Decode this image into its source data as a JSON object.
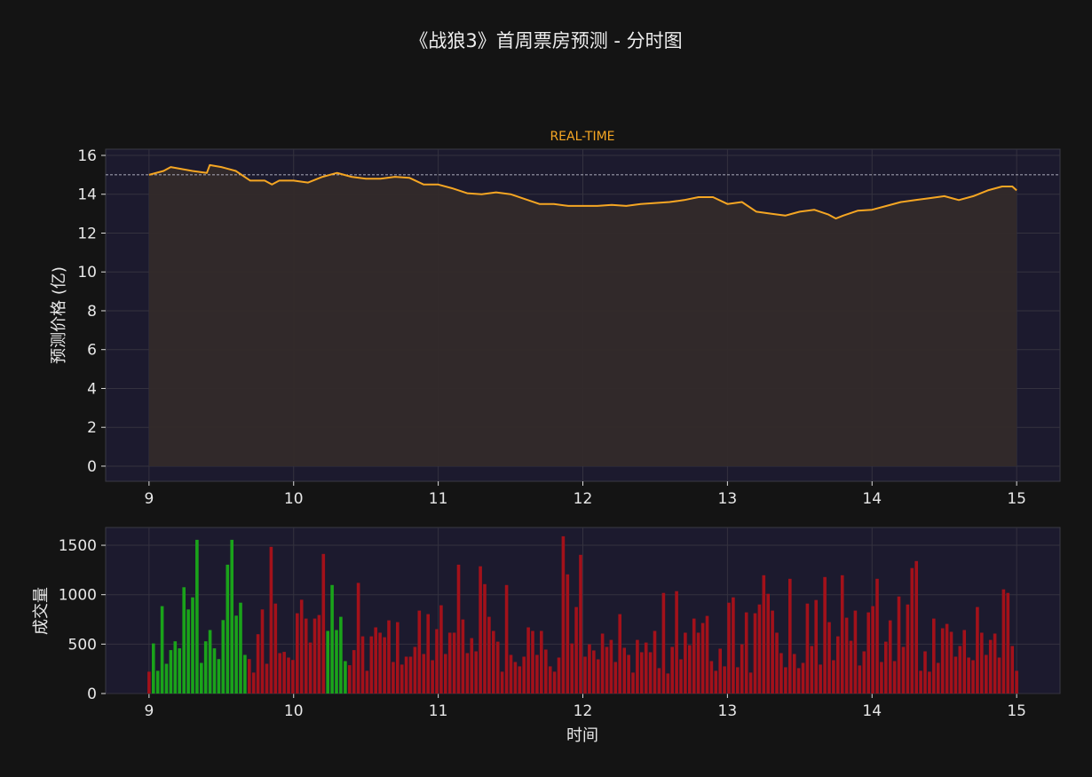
{
  "title": "《战狼3》首周票房预测 - 分时图",
  "colors": {
    "background": "#141414",
    "plot_bg": "#1c1a2e",
    "line": "#f5a623",
    "fill": "#332a2a",
    "up": "#1aa31a",
    "down": "#a3111a",
    "reference": "#d8d8e8"
  },
  "chart_data": [
    {
      "type": "line",
      "subtitle": "REAL-TIME",
      "ylabel": "预测价格 (亿)",
      "xlim": [
        8.7,
        15.3
      ],
      "ylim": [
        -0.78,
        16.32
      ],
      "xticks": [
        9,
        10,
        11,
        12,
        13,
        14,
        15
      ],
      "yticks": [
        0,
        2,
        4,
        6,
        8,
        10,
        12,
        14,
        16
      ],
      "grid": true,
      "area_fill": true,
      "reference_line": 15.0,
      "x": [
        9.0,
        9.1,
        9.15,
        9.3,
        9.4,
        9.42,
        9.5,
        9.6,
        9.7,
        9.8,
        9.85,
        9.9,
        10.0,
        10.1,
        10.2,
        10.3,
        10.4,
        10.5,
        10.6,
        10.7,
        10.8,
        10.9,
        11.0,
        11.1,
        11.2,
        11.3,
        11.4,
        11.5,
        11.6,
        11.7,
        11.8,
        11.9,
        12.0,
        12.1,
        12.2,
        12.3,
        12.4,
        12.5,
        12.6,
        12.7,
        12.8,
        12.9,
        13.0,
        13.1,
        13.2,
        13.3,
        13.4,
        13.5,
        13.6,
        13.7,
        13.75,
        13.8,
        13.9,
        14.0,
        14.1,
        14.2,
        14.3,
        14.4,
        14.5,
        14.6,
        14.7,
        14.8,
        14.9,
        14.97,
        15.0
      ],
      "y": [
        15.0,
        15.2,
        15.4,
        15.2,
        15.1,
        15.5,
        15.4,
        15.2,
        14.7,
        14.7,
        14.5,
        14.7,
        14.7,
        14.6,
        14.9,
        15.1,
        14.9,
        14.8,
        14.8,
        14.9,
        14.85,
        14.5,
        14.5,
        14.3,
        14.05,
        14.0,
        14.1,
        14.0,
        13.75,
        13.5,
        13.5,
        13.4,
        13.4,
        13.4,
        13.45,
        13.4,
        13.5,
        13.55,
        13.6,
        13.7,
        13.85,
        13.85,
        13.5,
        13.6,
        13.1,
        13.0,
        12.9,
        13.1,
        13.2,
        12.95,
        12.75,
        12.9,
        13.15,
        13.2,
        13.4,
        13.6,
        13.7,
        13.8,
        13.9,
        13.7,
        13.9,
        14.2,
        14.4,
        14.4,
        14.2
      ]
    },
    {
      "type": "bar",
      "xlabel": "时间",
      "ylabel": "成交量",
      "xlim": [
        8.7,
        15.3
      ],
      "ylim": [
        0,
        1680
      ],
      "xticks": [
        9,
        10,
        11,
        12,
        13,
        14,
        15
      ],
      "yticks": [
        0,
        500,
        1000,
        1500
      ],
      "grid": true,
      "x_start": 9,
      "x_end": 15,
      "values": [
        221,
        507,
        230,
        884,
        301,
        439,
        528,
        457,
        1075,
        851,
        973,
        1555,
        310,
        528,
        642,
        457,
        349,
        743,
        1304,
        1555,
        788,
        919,
        391,
        349,
        212,
        600,
        851,
        301,
        1484,
        910,
        409,
        421,
        364,
        340,
        812,
        949,
        758,
        516,
        758,
        794,
        1412,
        633,
        1098,
        642,
        776,
        328,
        287,
        439,
        1119,
        579,
        230,
        579,
        669,
        615,
        570,
        740,
        319,
        722,
        293,
        373,
        373,
        472,
        839,
        400,
        803,
        337,
        651,
        893,
        400,
        615,
        615,
        1304,
        749,
        409,
        561,
        427,
        1287,
        1107,
        776,
        633,
        525,
        221,
        1098,
        391,
        319,
        275,
        373,
        669,
        633,
        391,
        633,
        445,
        275,
        221,
        364,
        1591,
        1206,
        507,
        875,
        1403,
        373,
        498,
        436,
        346,
        606,
        472,
        543,
        319,
        803,
        463,
        391,
        212,
        543,
        418,
        516,
        418,
        633,
        257,
        1018,
        203,
        472,
        1036,
        346,
        615,
        490,
        758,
        615,
        713,
        785,
        328,
        230,
        454,
        275,
        919,
        973,
        266,
        498,
        821,
        212,
        812,
        901,
        1197,
        1009,
        839,
        615,
        409,
        266,
        1161,
        400,
        257,
        310,
        910,
        481,
        946,
        293,
        1179,
        722,
        337,
        579,
        1197,
        767,
        534,
        839,
        284,
        427,
        821,
        884,
        1161,
        319,
        525,
        740,
        328,
        982,
        472,
        901,
        1269,
        1340,
        230,
        427,
        221,
        758,
        310,
        660,
        704,
        624,
        373,
        481,
        642,
        364,
        337,
        875,
        615,
        391,
        543,
        606,
        364,
        1054,
        1018,
        481,
        230
      ],
      "direction": [
        "down",
        "up",
        "up",
        "up",
        "up",
        "up",
        "up",
        "up",
        "up",
        "up",
        "up",
        "up",
        "up",
        "up",
        "up",
        "up",
        "up",
        "up",
        "up",
        "up",
        "up",
        "up",
        "up",
        "down",
        "down",
        "down",
        "down",
        "down",
        "down",
        "down",
        "down",
        "down",
        "down",
        "down",
        "down",
        "down",
        "down",
        "down",
        "down",
        "down",
        "down",
        "up",
        "up",
        "up",
        "up",
        "up",
        "down",
        "down",
        "down",
        "down"
      ]
    }
  ]
}
